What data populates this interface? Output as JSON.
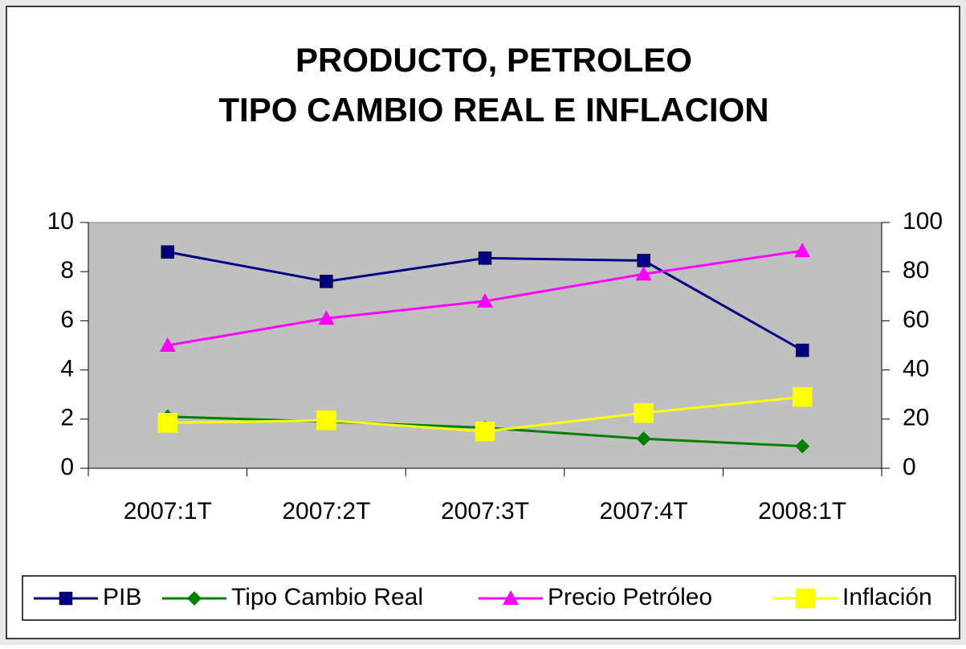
{
  "chart_data": {
    "type": "line",
    "title": [
      "PRODUCTO, PETROLEO",
      "TIPO CAMBIO REAL E INFLACION"
    ],
    "categories": [
      "2007:1T",
      "2007:2T",
      "2007:3T",
      "2007:4T",
      "2008:1T"
    ],
    "series": [
      {
        "name": "PIB",
        "color": "#000080",
        "marker": "square",
        "values": [
          8.8,
          7.6,
          8.55,
          8.45,
          4.8
        ]
      },
      {
        "name": "Tipo Cambio Real",
        "color": "#008000",
        "marker": "diamond",
        "values": [
          2.1,
          1.9,
          1.65,
          1.2,
          0.9
        ]
      },
      {
        "name": "Precio Petróleo",
        "color": "#ff00ff",
        "marker": "triangle",
        "axis": "y2",
        "values": [
          50,
          61,
          68,
          79,
          88.5
        ]
      },
      {
        "name": "Inflación",
        "color": "#ffff00",
        "marker": "bigsquare",
        "values": [
          1.85,
          1.95,
          1.5,
          2.25,
          2.9
        ]
      }
    ],
    "ylim": [
      0,
      10
    ],
    "yticks": [
      0,
      2,
      4,
      6,
      8,
      10
    ],
    "y2lim": [
      0,
      100
    ],
    "y2ticks": [
      0,
      20,
      40,
      60,
      80,
      100
    ],
    "plot_background": "#c0c0c0",
    "legend": "bottom"
  }
}
